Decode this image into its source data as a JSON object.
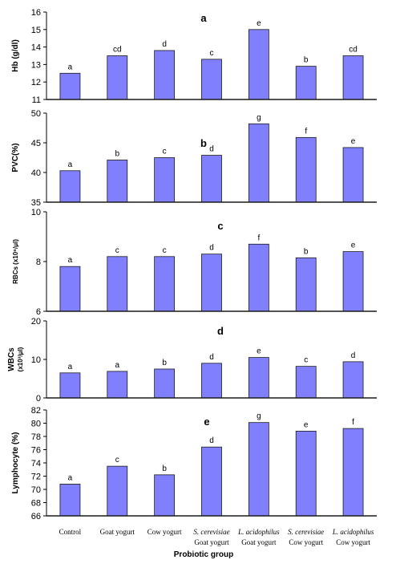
{
  "chart_data": {
    "xlabel": "Probiotic group",
    "categories": [
      {
        "line1": "Control",
        "line2": "",
        "line1_italic": false
      },
      {
        "line1": "Goat yogurt",
        "line2": "",
        "line1_italic": false
      },
      {
        "line1": "Cow yogurt",
        "line2": "",
        "line1_italic": false
      },
      {
        "line1": "S. cerevisiae",
        "line2": "Goat yogurt",
        "line1_italic": true
      },
      {
        "line1": "L. acidophilus",
        "line2": "Goat yogurt",
        "line1_italic": true
      },
      {
        "line1": "S. cerevisiae",
        "line2": "Cow yogurt",
        "line1_italic": true
      },
      {
        "line1": "L. acidophilus",
        "line2": "Cow yogurt",
        "line1_italic": true
      }
    ],
    "colors": {
      "bar": "#8080ff",
      "bar_stroke": "#1a1a1a",
      "axis": "#000000",
      "baseline": "#1a1a1a"
    },
    "panels": [
      {
        "type": "bar",
        "letter": "a",
        "ylabel": "Hb (g/dl)",
        "ylim": [
          11,
          16
        ],
        "yticks": [
          11,
          12,
          13,
          14,
          15,
          16
        ],
        "values": [
          12.5,
          13.5,
          13.8,
          13.3,
          15.0,
          12.9,
          13.5
        ],
        "labels": [
          "a",
          "cd",
          "d",
          "c",
          "e",
          "b",
          "cd"
        ]
      },
      {
        "type": "bar",
        "letter": "b",
        "ylabel": "PVC(%)",
        "ylim": [
          35,
          50
        ],
        "yticks": [
          35,
          40,
          45,
          50
        ],
        "values": [
          40.3,
          42.1,
          42.5,
          42.9,
          48.2,
          45.9,
          44.2
        ],
        "labels": [
          "a",
          "b",
          "c",
          "d",
          "g",
          "f",
          "e"
        ]
      },
      {
        "type": "bar",
        "letter": "c",
        "ylabel": "RBCs (x10⁶/μl)",
        "ylim": [
          6,
          10
        ],
        "yticks": [
          6,
          8,
          10
        ],
        "values": [
          7.8,
          8.2,
          8.2,
          8.3,
          8.7,
          8.15,
          8.4
        ],
        "labels": [
          "a",
          "c",
          "c",
          "d",
          "f",
          "b",
          "e"
        ]
      },
      {
        "type": "bar",
        "letter": "d",
        "ylabel": "WBCs",
        "ylabel2": "(x10³/μl)",
        "ylim": [
          0,
          20
        ],
        "yticks": [
          0,
          10,
          20
        ],
        "values": [
          6.5,
          6.9,
          7.5,
          9.0,
          10.5,
          8.2,
          9.4
        ],
        "labels": [
          "a",
          "a",
          "b",
          "d",
          "e",
          "c",
          "d"
        ]
      },
      {
        "type": "bar",
        "letter": "e",
        "ylabel": "Lymphocyte (%)",
        "ylim": [
          66,
          82
        ],
        "yticks": [
          66,
          68,
          70,
          72,
          74,
          76,
          78,
          80,
          82
        ],
        "values": [
          70.8,
          73.5,
          72.2,
          76.4,
          80.1,
          78.8,
          79.2
        ],
        "labels": [
          "a",
          "c",
          "b",
          "d",
          "g",
          "e",
          "f"
        ]
      }
    ]
  }
}
